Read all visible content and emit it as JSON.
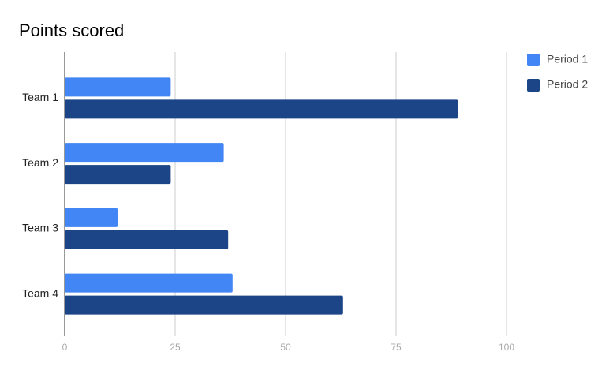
{
  "chart_data": {
    "type": "bar",
    "orientation": "horizontal",
    "title": "Points scored",
    "categories": [
      "Team 1",
      "Team 2",
      "Team 3",
      "Team 4"
    ],
    "series": [
      {
        "name": "Period 1",
        "color": "#4285f4",
        "values": [
          24,
          36,
          12,
          38
        ]
      },
      {
        "name": "Period 2",
        "color": "#1c4587",
        "values": [
          89,
          24,
          37,
          63
        ]
      }
    ],
    "xlim": [
      0,
      100
    ],
    "xticks": [
      0,
      25,
      50,
      75,
      100
    ],
    "grid": true,
    "legend": "top-right"
  }
}
